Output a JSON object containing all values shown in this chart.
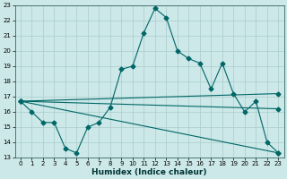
{
  "xlabel": "Humidex (Indice chaleur)",
  "background_color": "#cce8e8",
  "grid_color": "#aacccc",
  "line_color": "#006666",
  "xlim": [
    -0.5,
    23.5
  ],
  "ylim": [
    13,
    23
  ],
  "xticks": [
    0,
    1,
    2,
    3,
    4,
    5,
    6,
    7,
    8,
    9,
    10,
    11,
    12,
    13,
    14,
    15,
    16,
    17,
    18,
    19,
    20,
    21,
    22,
    23
  ],
  "yticks": [
    13,
    14,
    15,
    16,
    17,
    18,
    19,
    20,
    21,
    22,
    23
  ],
  "curve1_x": [
    0,
    1,
    2,
    3,
    4,
    5,
    6,
    7,
    8,
    9,
    10,
    11,
    12,
    13,
    14,
    15,
    16,
    17,
    18,
    19,
    20,
    21,
    22,
    23
  ],
  "curve1_y": [
    16.7,
    16.0,
    15.3,
    15.3,
    13.6,
    13.3,
    15.0,
    15.3,
    16.3,
    18.8,
    19.0,
    21.2,
    22.8,
    22.2,
    20.0,
    19.5,
    19.2,
    17.5,
    19.2,
    17.2,
    16.0,
    16.7,
    14.0,
    13.3
  ],
  "curve2_x": [
    0,
    23
  ],
  "curve2_y": [
    16.7,
    17.2
  ],
  "curve3_x": [
    0,
    23
  ],
  "curve3_y": [
    16.7,
    16.2
  ],
  "curve4_x": [
    0,
    23
  ],
  "curve4_y": [
    16.7,
    13.3
  ],
  "markersize": 2.5,
  "linewidth": 0.8,
  "xlabel_fontsize": 6.5,
  "tick_fontsize": 5.0
}
